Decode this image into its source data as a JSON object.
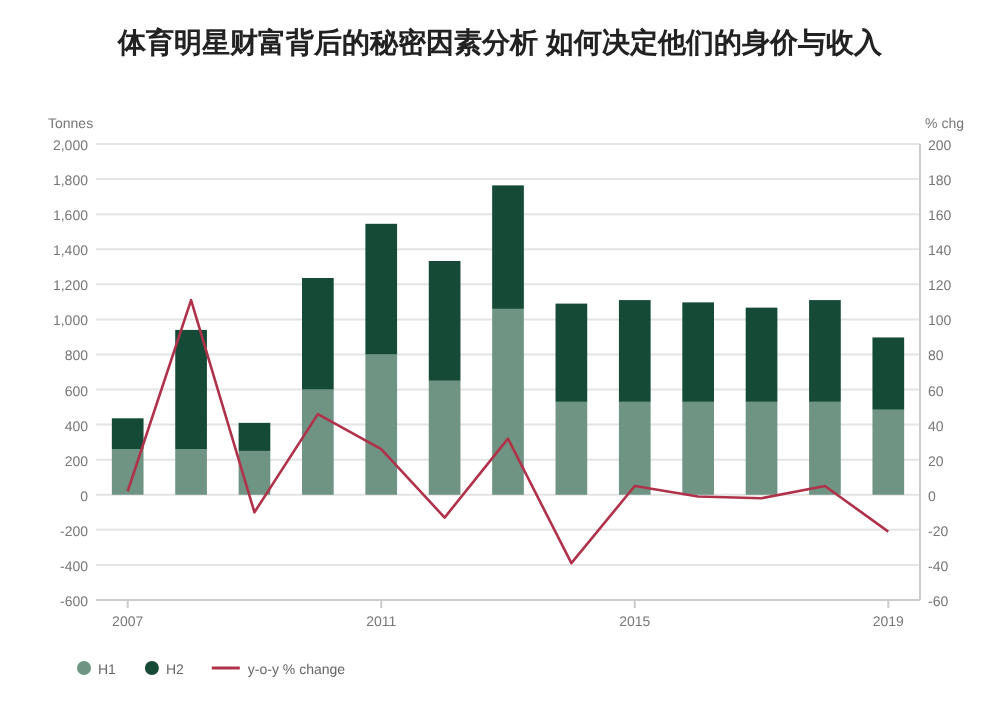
{
  "chart_data": {
    "type": "bar",
    "stacked": true,
    "title": "体育明星财富背后的秘密因素分析 如何决定他们的身价与收入",
    "ylabel": "Tonnes",
    "y2label": "% chg",
    "x": [
      2007,
      2008,
      2009,
      2010,
      2011,
      2012,
      2013,
      2014,
      2015,
      2016,
      2017,
      2018,
      2019
    ],
    "xlim": [
      2006.5,
      2019.5
    ],
    "xticks": [
      2007,
      2011,
      2015,
      2019
    ],
    "ylim": [
      -600,
      2000
    ],
    "yticks": [
      {
        "value": -600,
        "label": "-600"
      },
      {
        "value": -400,
        "label": "-400"
      },
      {
        "value": -200,
        "label": "-200"
      },
      0,
      200,
      400,
      600,
      800,
      {
        "value": 1000,
        "label": "1,000"
      },
      {
        "value": 1200,
        "label": "1,200"
      },
      {
        "value": 1400,
        "label": "1,400"
      },
      {
        "value": 1600,
        "label": "1,600"
      },
      {
        "value": 1800,
        "label": "1,800"
      },
      {
        "value": 2000,
        "label": "2,000"
      }
    ],
    "y2lim": [
      -60,
      200
    ],
    "y2ticks": [
      -60,
      -40,
      -20,
      0,
      20,
      40,
      60,
      80,
      100,
      120,
      140,
      160,
      180,
      200
    ],
    "grid": "y",
    "legend": "bottom left",
    "series": [
      {
        "name": "H1",
        "color": "#6f9484",
        "values": [
          260,
          260,
          250,
          600,
          800,
          650,
          1060,
          530,
          530,
          530,
          530,
          530,
          485
        ]
      },
      {
        "name": "H2",
        "color": "#144a36",
        "values": [
          176,
          680,
          160,
          636,
          745,
          683,
          704,
          560,
          580,
          567,
          537,
          580,
          412
        ]
      },
      {
        "name": "y-o-y % change",
        "type": "line",
        "axis": "y2",
        "color": "#b0324a",
        "values": [
          2,
          111,
          -10,
          46,
          26,
          -13,
          32,
          -39,
          5,
          -1,
          -2,
          5,
          -21
        ]
      }
    ]
  }
}
